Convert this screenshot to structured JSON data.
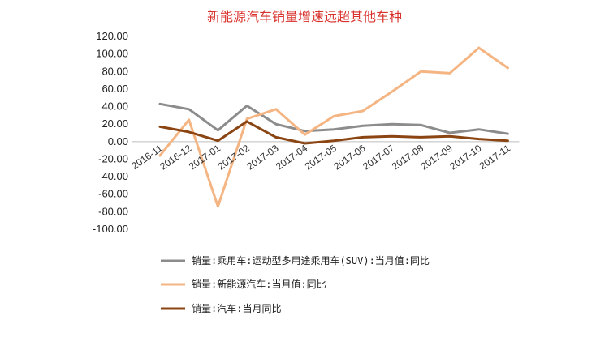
{
  "chart_data": {
    "type": "line",
    "title": "新能源汽车销量增速远超其他车种",
    "categories": [
      "2016-11",
      "2016-12",
      "2017-01",
      "2017-02",
      "2017-03",
      "2017-04",
      "2017-05",
      "2017-06",
      "2017-07",
      "2017-08",
      "2017-09",
      "2017-10",
      "2017-11"
    ],
    "y_ticks": [
      "120.00",
      "100.00",
      "80.00",
      "60.00",
      "40.00",
      "20.00",
      "0.00",
      "-20.00",
      "-40.00",
      "-60.00",
      "-80.00",
      "-100.00"
    ],
    "ylim": [
      -100,
      120
    ],
    "grid": false,
    "legend_position": "bottom",
    "series": [
      {
        "name": "销量:乘用车:运动型多用途乘用车(SUV):当月值:同比",
        "color": "#8c8c8c",
        "values": [
          43,
          37,
          13,
          41,
          20,
          12,
          14,
          18,
          20,
          19,
          10,
          14,
          9
        ]
      },
      {
        "name": "销量:新能源汽车:当月值:同比",
        "color": "#f5b583",
        "values": [
          -16,
          25,
          -74,
          26,
          37,
          8,
          29,
          35,
          57,
          80,
          78,
          107,
          84
        ]
      },
      {
        "name": "销量:汽车:当月同比",
        "color": "#8b4513",
        "values": [
          17,
          11,
          1,
          23,
          5,
          -2,
          1,
          5,
          6,
          5,
          6,
          3,
          1
        ]
      }
    ]
  }
}
